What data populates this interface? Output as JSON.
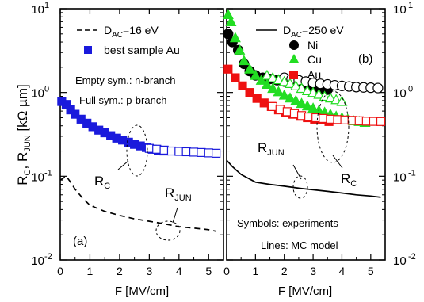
{
  "figure": {
    "ylabel_parts": {
      "r": "R",
      "c": "C",
      "sep": ", R",
      "jun": "JUN",
      "unit": " [kΩ µm]"
    }
  },
  "chart_data": [
    {
      "type": "scatter",
      "panel_label": "(a)",
      "xlabel": "F [MV/cm]",
      "xlim": [
        0,
        5.5
      ],
      "ylim": [
        0.01,
        10
      ],
      "yscale": "log",
      "xticks": [
        0,
        1,
        2,
        3,
        4,
        5
      ],
      "yticks": [
        {
          "value": 0.01,
          "base": "10",
          "exp": "-2"
        },
        {
          "value": 0.1,
          "base": "10",
          "exp": "-1"
        },
        {
          "value": 1,
          "base": "10",
          "exp": "0"
        },
        {
          "value": 10,
          "base": "10",
          "exp": "1"
        }
      ],
      "legend": [
        {
          "kind": "dashed-line",
          "text_main": "D",
          "text_sub": "AC",
          "text_rest": "=16 eV"
        },
        {
          "kind": "filled-square",
          "text_main": "best sample Au",
          "text_sub": "",
          "text_rest": ""
        }
      ],
      "notes": [
        "Empty sym.: n-branch",
        "Full sym.: p-branch"
      ],
      "annotations": [
        {
          "main": "R",
          "sub": "C"
        },
        {
          "main": "R",
          "sub": "JUN"
        }
      ],
      "series": [
        {
          "marker": "square",
          "fill": "filled",
          "color": "#1a1adc",
          "x": [
            0.05,
            0.2,
            0.35,
            0.5,
            0.7,
            0.9,
            1.1,
            1.3,
            1.5,
            1.7,
            1.9,
            2.1,
            2.3,
            2.5,
            2.7,
            2.9,
            3.1,
            3.3,
            3.5
          ],
          "y": [
            0.78,
            0.72,
            0.62,
            0.55,
            0.48,
            0.43,
            0.39,
            0.355,
            0.33,
            0.305,
            0.285,
            0.27,
            0.255,
            0.24,
            0.23,
            0.22,
            0.21,
            0.205,
            0.2
          ]
        },
        {
          "marker": "square",
          "fill": "open",
          "color": "#1a1adc",
          "x": [
            3.0,
            3.25,
            3.5,
            3.75,
            4.0,
            4.25,
            4.5,
            4.75,
            5.0,
            5.25
          ],
          "y": [
            0.215,
            0.21,
            0.205,
            0.2,
            0.198,
            0.196,
            0.194,
            0.192,
            0.19,
            0.188
          ]
        },
        {
          "line": "dashed",
          "color": "#000000",
          "x": [
            0,
            0.2,
            0.35,
            0.5,
            0.75,
            1.0,
            1.5,
            2.0,
            2.5,
            3.0,
            3.5,
            4.0,
            4.5,
            5.0,
            5.25
          ],
          "y": [
            0.09,
            0.1,
            0.085,
            0.07,
            0.055,
            0.045,
            0.038,
            0.034,
            0.031,
            0.029,
            0.027,
            0.025,
            0.024,
            0.023,
            0.022
          ]
        }
      ]
    },
    {
      "type": "scatter",
      "panel_label": "(b)",
      "xlabel": "F [MV/cm]",
      "xlim": [
        0,
        5.5
      ],
      "ylim": [
        0.01,
        10
      ],
      "yscale": "log",
      "xticks": [
        0,
        1,
        2,
        3,
        4,
        5
      ],
      "yticks": [
        {
          "value": 0.01,
          "base": "10",
          "exp": "-2"
        },
        {
          "value": 0.1,
          "base": "10",
          "exp": "-1"
        },
        {
          "value": 1,
          "base": "10",
          "exp": "0"
        },
        {
          "value": 10,
          "base": "10",
          "exp": "1"
        }
      ],
      "legend": [
        {
          "kind": "solid-line",
          "text_main": "D",
          "text_sub": "AC",
          "text_rest": "=250 eV"
        },
        {
          "kind": "filled-circle",
          "text_main": "Ni",
          "text_sub": "",
          "text_rest": ""
        },
        {
          "kind": "filled-triangle",
          "text_main": "Cu",
          "text_sub": "",
          "text_rest": ""
        },
        {
          "kind": "filled-square-red",
          "text_main": "Au",
          "text_sub": "",
          "text_rest": ""
        }
      ],
      "notes": [
        "Symbols: experiments",
        "Lines: MC model"
      ],
      "annotations": [
        {
          "main": "R",
          "sub": "JUN"
        },
        {
          "main": "R",
          "sub": "C"
        }
      ],
      "series": [
        {
          "name": "Ni",
          "marker": "circle",
          "fill": "filled",
          "color": "#000000",
          "x": [
            0.05,
            0.2,
            0.4,
            0.6,
            0.8,
            1.0,
            1.25,
            1.5,
            1.75,
            2.0,
            2.25,
            2.5,
            2.75,
            3.0,
            3.25,
            3.5
          ],
          "y": [
            5.0,
            4.0,
            3.2,
            2.2,
            1.8,
            1.6,
            1.5,
            1.45,
            1.4,
            1.35,
            1.3,
            1.25,
            1.2,
            1.15,
            1.1,
            1.08
          ]
        },
        {
          "name": "Ni",
          "marker": "circle",
          "fill": "open",
          "color": "#000000",
          "x": [
            2.0,
            2.25,
            2.5,
            2.75,
            3.0,
            3.25,
            3.5,
            3.75,
            4.0,
            4.25,
            4.5,
            4.75,
            5.0,
            5.25
          ],
          "y": [
            1.5,
            1.45,
            1.4,
            1.35,
            1.3,
            1.27,
            1.25,
            1.22,
            1.2,
            1.18,
            1.16,
            1.15,
            1.14,
            1.13
          ]
        },
        {
          "name": "Cu",
          "marker": "triangle",
          "fill": "filled",
          "color": "#22dd22",
          "x": [
            0.05,
            0.15,
            0.3,
            0.45,
            0.6,
            0.8,
            1.0,
            1.2,
            1.4,
            1.6,
            1.8,
            2.0,
            2.2,
            2.4,
            2.6,
            2.8,
            3.0,
            3.2,
            3.4,
            3.6,
            3.8,
            4.0,
            4.2,
            4.4,
            4.6,
            4.8
          ],
          "y": [
            8.5,
            7.0,
            4.5,
            3.2,
            2.4,
            1.9,
            1.6,
            1.4,
            1.25,
            1.12,
            1.02,
            0.93,
            0.86,
            0.8,
            0.74,
            0.69,
            0.65,
            0.61,
            0.58,
            0.55,
            0.52,
            0.5,
            0.48,
            0.46,
            0.45,
            0.44
          ]
        },
        {
          "name": "Cu",
          "marker": "triangle",
          "fill": "open",
          "color": "#22dd22",
          "x": [
            1.4,
            1.6,
            1.8,
            2.0,
            2.2,
            2.4,
            2.6,
            2.8,
            3.0,
            3.2,
            3.4,
            3.6,
            3.8,
            4.0
          ],
          "y": [
            1.6,
            1.5,
            1.42,
            1.35,
            1.28,
            1.2,
            1.12,
            1.05,
            1.0,
            0.95,
            0.9,
            0.86,
            0.82,
            0.78
          ]
        },
        {
          "name": "Au",
          "marker": "square",
          "fill": "filled",
          "color": "#ee1111",
          "x": [
            0.05,
            0.3,
            0.55,
            0.8,
            1.05,
            1.3,
            1.55,
            1.8,
            2.05,
            2.3,
            2.55,
            2.8,
            3.05,
            3.3,
            3.55
          ],
          "y": [
            1.9,
            1.5,
            1.2,
            1.0,
            0.85,
            0.75,
            0.68,
            0.62,
            0.58,
            0.55,
            0.52,
            0.5,
            0.48,
            0.47,
            0.45
          ]
        },
        {
          "name": "Au",
          "marker": "square",
          "fill": "open",
          "color": "#ee1111",
          "x": [
            1.6,
            1.85,
            2.1,
            2.35,
            2.6,
            2.85,
            3.1,
            3.35,
            3.6,
            3.85,
            4.1,
            4.35,
            4.6,
            4.85,
            5.1,
            5.35
          ],
          "y": [
            0.68,
            0.63,
            0.59,
            0.56,
            0.53,
            0.51,
            0.5,
            0.49,
            0.48,
            0.475,
            0.47,
            0.465,
            0.46,
            0.455,
            0.452,
            0.45
          ]
        },
        {
          "line": "solid",
          "color": "#000000",
          "x": [
            0,
            0.2,
            0.5,
            1.0,
            1.5,
            2.0,
            2.5,
            3.0,
            3.5,
            4.0,
            4.5,
            5.0,
            5.35
          ],
          "y": [
            0.155,
            0.13,
            0.105,
            0.085,
            0.08,
            0.076,
            0.072,
            0.069,
            0.066,
            0.063,
            0.06,
            0.058,
            0.056
          ]
        }
      ]
    }
  ]
}
